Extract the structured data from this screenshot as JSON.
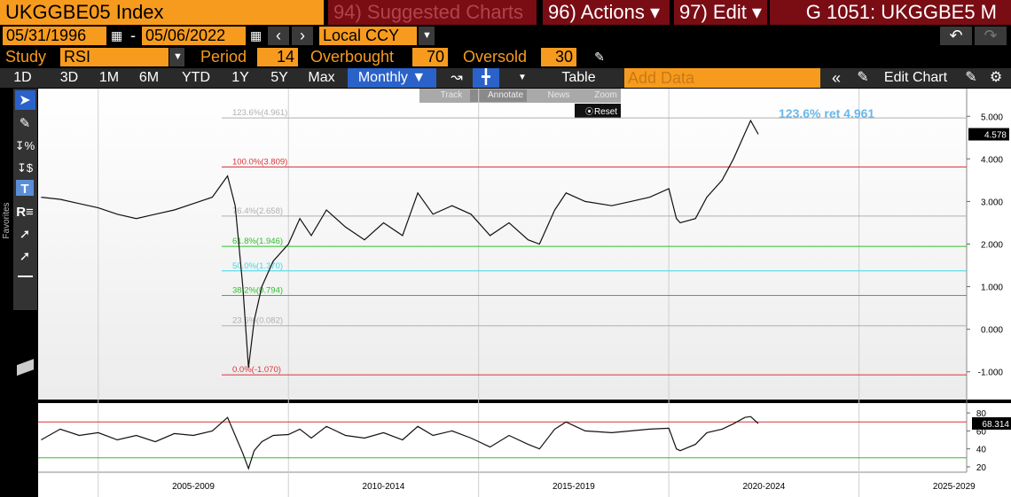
{
  "header": {
    "security": "UKGGBE05 Index",
    "suggested": "94) Suggested Charts",
    "actions": "96) Actions ▾",
    "edit": "97) Edit ▾",
    "page": "G 1051: UKGGBE5 M"
  },
  "controls": {
    "start_date": "05/31/1996",
    "dash": "-",
    "end_date": "05/06/2022",
    "currency": "Local CCY",
    "study_label": "Study",
    "study": "RSI",
    "period_label": "Period",
    "overbought_label": "Overbought",
    "oversold_label": "Oversold",
    "ranges": [
      "1D",
      "3D",
      "1M",
      "6M",
      "YTD",
      "1Y",
      "5Y",
      "Max"
    ],
    "frequency": "Monthly ▼",
    "table": "Table",
    "add_data": "Add Data",
    "edit_chart": "Edit Chart"
  },
  "popup": {
    "track": "Track",
    "annotate": "Annotate",
    "news": "News",
    "zoom": "Zoom",
    "reset": "Reset"
  },
  "sidebar": {
    "favorites": "Favorites"
  },
  "chart_data": [
    {
      "type": "line",
      "color": "#111111",
      "x": [
        2003.5,
        2004,
        2004.5,
        2005,
        2005.5,
        2006,
        2006.5,
        2007,
        2007.5,
        2008,
        2008.4,
        2008.6,
        2008.8,
        2008.95,
        2009.1,
        2009.3,
        2009.6,
        2010,
        2010.3,
        2010.6,
        2011,
        2011.5,
        2012,
        2012.5,
        2013,
        2013.4,
        2013.8,
        2014.3,
        2014.8,
        2015.3,
        2015.8,
        2016.3,
        2016.6,
        2017,
        2017.3,
        2017.8,
        2018.5,
        2019,
        2019.5,
        2020,
        2020.2,
        2020.3,
        2020.7,
        2021,
        2021.4,
        2021.7,
        2022,
        2022.15,
        2022.35
      ],
      "values": [
        3.1,
        3.05,
        2.95,
        2.85,
        2.7,
        2.6,
        2.7,
        2.8,
        2.95,
        3.1,
        3.6,
        2.9,
        1.0,
        -0.9,
        0.2,
        1.0,
        1.6,
        2.0,
        2.6,
        2.2,
        2.8,
        2.4,
        2.1,
        2.5,
        2.2,
        3.2,
        2.7,
        2.9,
        2.7,
        2.2,
        2.5,
        2.1,
        2.0,
        2.8,
        3.2,
        3.0,
        2.9,
        3.0,
        3.1,
        3.3,
        2.6,
        2.5,
        2.6,
        3.1,
        3.5,
        4.0,
        4.6,
        4.9,
        4.578
      ],
      "last_value": 4.578,
      "xlim": [
        2003.42,
        2027.83
      ],
      "xticks": [
        {
          "value": 2005,
          "label": "2005-2009"
        },
        {
          "value": 2010,
          "label": "2010-2014"
        },
        {
          "value": 2015,
          "label": "2015-2019"
        },
        {
          "value": 2020,
          "label": "2020-2024"
        },
        {
          "value": 2025,
          "label": "2025-2029"
        }
      ],
      "ylim": [
        -1.65,
        5.65
      ],
      "yticks": [
        {
          "value": 5,
          "label": "5.000"
        },
        {
          "value": 4,
          "label": "4.000"
        },
        {
          "value": 3,
          "label": "3.000"
        },
        {
          "value": 2,
          "label": "2.000"
        },
        {
          "value": 1,
          "label": "1.000"
        },
        {
          "value": 0,
          "label": "0.000"
        },
        {
          "value": -1,
          "label": "-1.000"
        }
      ],
      "levels": [
        {
          "label": "123.6%(4.961)",
          "value": 4.961,
          "color": "#b0b0b0"
        },
        {
          "label": "100.0%(3.809)",
          "value": 3.809,
          "color": "#d9343a"
        },
        {
          "label": "76.4%(2.658)",
          "value": 2.658,
          "color": "#b0b0b0"
        },
        {
          "label": "61.8%(1.946)",
          "value": 1.946,
          "color": "#2fc02f"
        },
        {
          "label": "50.0%(1.370)",
          "value": 1.37,
          "color": "#3fd8e8"
        },
        {
          "label": "38.2%(0.794)",
          "value": 0.794,
          "color": "#2fc02f"
        },
        {
          "label": "23.6%(0.082)",
          "value": 0.082,
          "color": "#b0b0b0"
        },
        {
          "label": "0.0%(-1.070)",
          "value": -1.07,
          "color": "#d9343a"
        }
      ],
      "annotation": "123.6% ret 4.961"
    },
    {
      "type": "line",
      "title": "RSI",
      "color": "#111111",
      "period": 14,
      "overbought": 70,
      "oversold": 30,
      "x": [
        2003.5,
        2004,
        2004.5,
        2005,
        2005.5,
        2006,
        2006.5,
        2007,
        2007.5,
        2008,
        2008.4,
        2008.6,
        2008.8,
        2008.95,
        2009.1,
        2009.3,
        2009.6,
        2010,
        2010.3,
        2010.6,
        2011,
        2011.5,
        2012,
        2012.5,
        2013,
        2013.4,
        2013.8,
        2014.3,
        2014.8,
        2015.3,
        2015.8,
        2016.3,
        2016.6,
        2017,
        2017.3,
        2017.8,
        2018.5,
        2019,
        2019.5,
        2020,
        2020.2,
        2020.3,
        2020.7,
        2021,
        2021.4,
        2021.7,
        2022,
        2022.15,
        2022.35
      ],
      "values": [
        50,
        62,
        55,
        58,
        50,
        55,
        48,
        57,
        55,
        60,
        75,
        55,
        35,
        18,
        38,
        48,
        55,
        56,
        62,
        52,
        65,
        55,
        52,
        58,
        50,
        65,
        55,
        60,
        52,
        42,
        55,
        45,
        40,
        62,
        70,
        60,
        58,
        60,
        62,
        63,
        40,
        38,
        45,
        58,
        62,
        68,
        75,
        76,
        68.314
      ],
      "last_value": 68.314,
      "xlim": [
        2003.42,
        2027.83
      ],
      "ylim": [
        14,
        91
      ],
      "yticks": [
        20,
        40,
        60,
        80
      ]
    }
  ]
}
